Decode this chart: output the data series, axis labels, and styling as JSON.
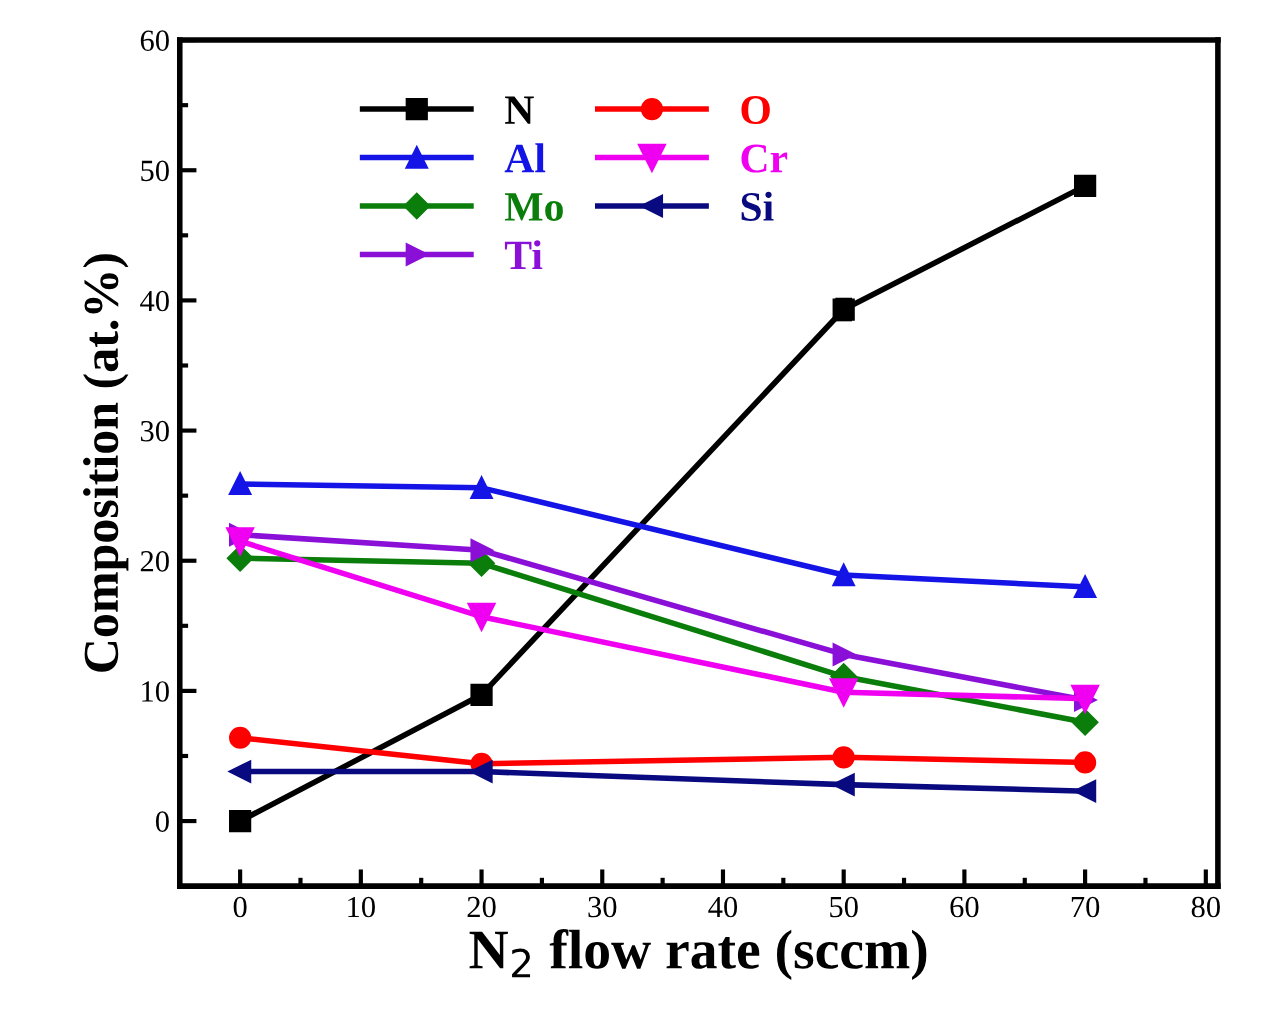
{
  "chart_data": {
    "type": "line",
    "xlabel": "N$_{2}$ flow rate (sccm)",
    "ylabel": "Composition (at.%)",
    "x": [
      0,
      20,
      50,
      70
    ],
    "series": [
      {
        "name": "N",
        "color": "#000000",
        "marker": "square",
        "values": [
          0,
          9.7,
          39.3,
          48.8
        ],
        "errors": [
          null,
          null,
          0.8,
          null
        ]
      },
      {
        "name": "O",
        "color": "#ff0000",
        "marker": "circle",
        "values": [
          6.4,
          4.4,
          4.9,
          4.5
        ]
      },
      {
        "name": "Al",
        "color": "#1414e6",
        "marker": "triangle",
        "values": [
          25.9,
          25.6,
          18.9,
          18.0
        ]
      },
      {
        "name": "Cr",
        "color": "#f000f0",
        "marker": "triangle_down",
        "values": [
          21.5,
          15.7,
          9.9,
          9.4
        ]
      },
      {
        "name": "Mo",
        "color": "#0a7d0a",
        "marker": "diamond",
        "values": [
          20.2,
          19.8,
          11.1,
          7.6
        ]
      },
      {
        "name": "Si",
        "color": "#0a0a80",
        "marker": "triangle_left",
        "values": [
          3.8,
          3.8,
          2.8,
          2.3
        ]
      },
      {
        "name": "Ti",
        "color": "#8a10d8",
        "marker": "triangle_right",
        "values": [
          22.0,
          20.8,
          12.8,
          9.3
        ]
      }
    ],
    "xlim": [
      -5,
      81
    ],
    "ylim": [
      -5,
      60
    ],
    "xticks": [
      0,
      10,
      20,
      30,
      40,
      50,
      60,
      70,
      80
    ],
    "yticks": [
      0,
      10,
      20,
      30,
      40,
      50,
      60
    ],
    "grid": false,
    "legend": "top left"
  }
}
